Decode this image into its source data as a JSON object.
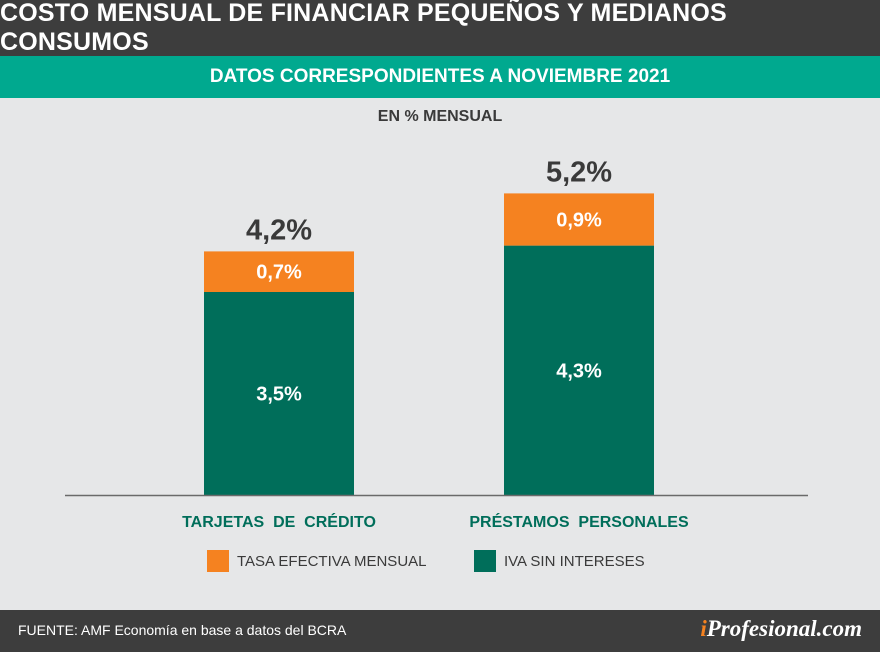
{
  "header": {
    "title": "COSTO MENSUAL DE FINANCIAR PEQUEÑOS Y MEDIANOS CONSUMOS",
    "subtitle": "DATOS CORRESPONDIENTES A NOVIEMBRE 2021"
  },
  "chart_data": {
    "type": "bar",
    "stacked": true,
    "title": "COSTO MENSUAL DE FINANCIAR PEQUEÑOS Y MEDIANOS CONSUMOS",
    "subtitle": "DATOS CORRESPONDIENTES A NOVIEMBRE 2021",
    "ylabel": "EN % MENSUAL",
    "categories": [
      "TARJETAS  DE  CRÉDITO",
      "PRÉSTAMOS  PERSONALES"
    ],
    "series": [
      {
        "name": "IVA SIN INTERESES",
        "values": [
          3.5,
          4.3
        ],
        "labels": [
          "3,5%",
          "4,3%"
        ],
        "color": "#006e5a"
      },
      {
        "name": "TASA EFECTIVA MENSUAL",
        "values": [
          0.7,
          0.9
        ],
        "labels": [
          "0,7%",
          "0,9%"
        ],
        "color": "#f58220"
      }
    ],
    "totals": [
      4.2,
      5.2
    ],
    "total_labels": [
      "4,2%",
      "5,2%"
    ],
    "ylim": [
      0,
      6
    ],
    "grid": false,
    "category_color": "#006e5a"
  },
  "legend": {
    "items": [
      {
        "label": "TASA EFECTIVA MENSUAL",
        "color": "#f58220"
      },
      {
        "label": "IVA SIN INTERESES",
        "color": "#006e5a"
      }
    ]
  },
  "footer": {
    "source": "FUENTE: AMF Economía en base a datos del BCRA",
    "logo_prefix": "i",
    "logo_rest": "Profesional.com"
  }
}
